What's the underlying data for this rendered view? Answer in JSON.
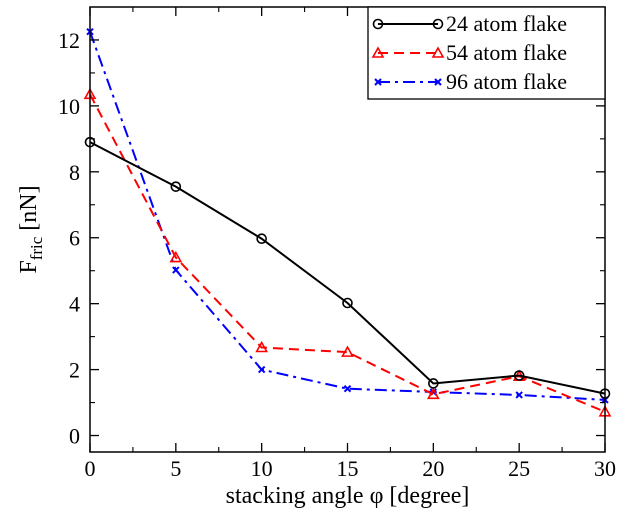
{
  "chart_data": {
    "type": "line",
    "x": [
      0,
      5,
      10,
      15,
      20,
      25,
      30
    ],
    "xlim": [
      0,
      30
    ],
    "ylim": [
      -0.5,
      13
    ],
    "xticks": [
      0,
      5,
      10,
      15,
      20,
      25,
      30
    ],
    "yticks": [
      0,
      2,
      4,
      6,
      8,
      10,
      12
    ],
    "xlabel": "stacking angle φ  [degree]",
    "ylabel_main": "F",
    "ylabel_sub": "fric",
    "ylabel_unit": " [nN]",
    "grid": false,
    "legend_position": "top-right",
    "series": [
      {
        "name": "24 atom flake",
        "color": "#000000",
        "dash": "solid",
        "marker": "circle",
        "values": [
          8.9,
          7.55,
          5.97,
          4.02,
          1.58,
          1.82,
          1.27
        ]
      },
      {
        "name": "54 atom flake",
        "color": "#ff0000",
        "dash": "dashed",
        "marker": "triangle",
        "values": [
          10.35,
          5.4,
          2.67,
          2.53,
          1.25,
          1.8,
          0.72
        ]
      },
      {
        "name": "96 atom flake",
        "color": "#0000ff",
        "dash": "dashdot",
        "marker": "x",
        "values": [
          12.25,
          5.02,
          2.0,
          1.42,
          1.32,
          1.23,
          1.08
        ]
      }
    ]
  }
}
